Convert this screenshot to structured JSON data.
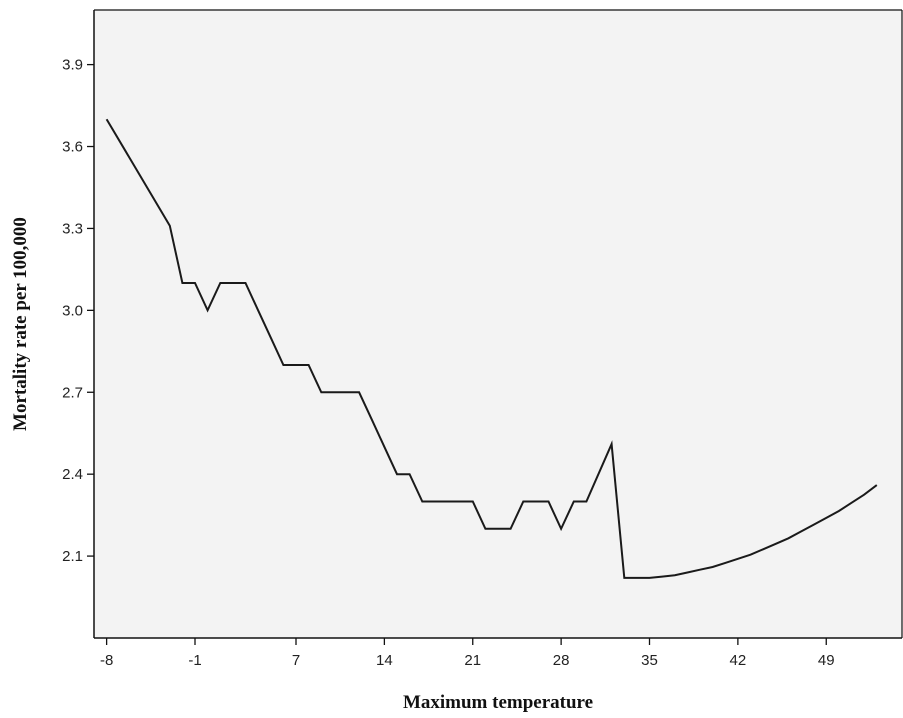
{
  "chart_data": {
    "type": "line",
    "title": "",
    "xlabel": "Maximum temperature",
    "ylabel": "Mortality rate per 100,000",
    "xlim": [
      -9.0,
      55.0
    ],
    "ylim": [
      1.8,
      4.1
    ],
    "xticks": [
      -8,
      -1,
      7,
      14,
      21,
      28,
      35,
      42,
      49
    ],
    "xtick_labels": [
      "-8",
      "-1",
      "7",
      "14",
      "21",
      "28",
      "35",
      "42",
      "49"
    ],
    "yticks": [
      2.1,
      2.4,
      2.7,
      3.0,
      3.3,
      3.6,
      3.9
    ],
    "ytick_labels": [
      "2.1",
      "2.4",
      "2.7",
      "3.0",
      "3.3",
      "3.6",
      "3.9"
    ],
    "grid": false,
    "background": "#f3f3f3",
    "line_color": "#1a1a1a",
    "series": [
      {
        "x": [
          -8,
          -3,
          -2,
          -1,
          0,
          1,
          2,
          3,
          4,
          5,
          6,
          7,
          8,
          9,
          10,
          11,
          12,
          13,
          14,
          15,
          16,
          17,
          18,
          19,
          20,
          21,
          22,
          23,
          24,
          25,
          26,
          27,
          28,
          29,
          30,
          32,
          33,
          34,
          35,
          36,
          37,
          38,
          39,
          40,
          41,
          42,
          43,
          44,
          45,
          46,
          47,
          48,
          49,
          50,
          51,
          52,
          53
        ],
        "values": [
          3.7,
          3.31,
          3.1,
          3.1,
          3.0,
          3.1,
          3.1,
          3.1,
          3.0,
          2.9,
          2.8,
          2.8,
          2.8,
          2.7,
          2.7,
          2.7,
          2.7,
          2.6,
          2.5,
          2.4,
          2.4,
          2.3,
          2.3,
          2.3,
          2.3,
          2.3,
          2.2,
          2.2,
          2.2,
          2.3,
          2.3,
          2.3,
          2.2,
          2.3,
          2.3,
          2.51,
          2.02,
          2.02,
          2.02,
          2.025,
          2.03,
          2.04,
          2.05,
          2.06,
          2.075,
          2.09,
          2.105,
          2.125,
          2.145,
          2.165,
          2.19,
          2.215,
          2.24,
          2.265,
          2.295,
          2.325,
          2.36
        ]
      }
    ]
  }
}
